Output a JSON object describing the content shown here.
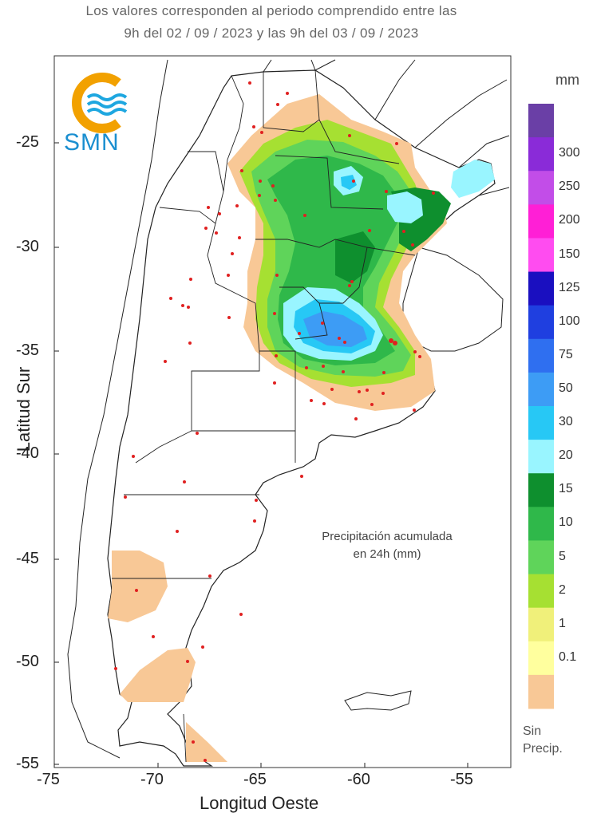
{
  "header": {
    "line1": "Los valores corresponden al periodo comprendido entre las",
    "line2": "9h del 02 / 09 / 2023  y las 9h del 03 / 09 / 2023"
  },
  "logo": {
    "text": "SMN"
  },
  "axes": {
    "ylabel": "Latitud Sur",
    "xlabel": "Longitud Oeste",
    "yticks": [
      "-25",
      "-30",
      "-35",
      "-40",
      "-45",
      "-50",
      "-55"
    ],
    "xticks": [
      "-75",
      "-70",
      "-65",
      "-60",
      "-55"
    ]
  },
  "annotation": {
    "line1": "Precipitación acumulada",
    "line2": "en 24h (mm)"
  },
  "legend": {
    "unit": "mm",
    "no_precip_line1": "Sin",
    "no_precip_line2": "Precip.",
    "labels": [
      "300",
      "250",
      "200",
      "150",
      "125",
      "100",
      "75",
      "50",
      "30",
      "20",
      "15",
      "10",
      "5",
      "2",
      "1",
      "0.1"
    ],
    "colors": [
      "#6a3fa6",
      "#8a2bd8",
      "#c24de8",
      "#ff1fd6",
      "#ff4cf0",
      "#1a0fc0",
      "#1f3fe0",
      "#2f6ff0",
      "#3d9cf5",
      "#27c8f5",
      "#99f5ff",
      "#0e8f2e",
      "#2fb84a",
      "#5fd45a",
      "#a6e032",
      "#f0f07a",
      "#ffff9e",
      "#f8c896"
    ]
  },
  "map": {
    "no_precip_color": "#f8c896"
  }
}
